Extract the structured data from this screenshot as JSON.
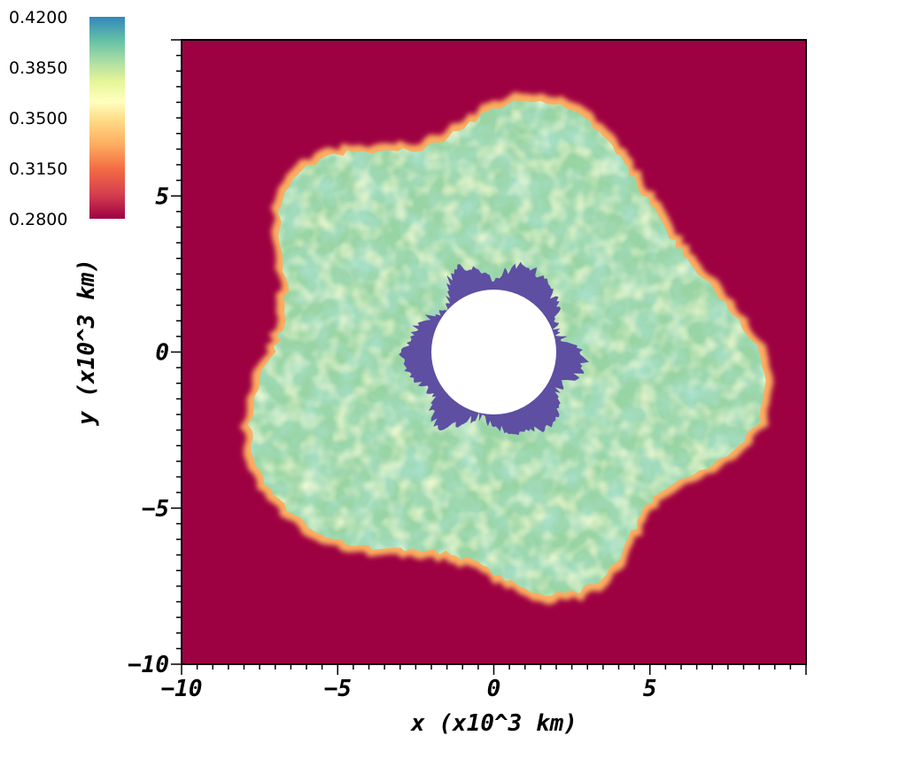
{
  "chart_data": {
    "type": "heatmap",
    "xlabel": "x (x10^3 km)",
    "ylabel": "y (x10^3 km)",
    "xlim": [
      -10,
      10
    ],
    "ylim": [
      -10,
      10
    ],
    "x_ticks": [
      -10,
      -5,
      0,
      5
    ],
    "y_ticks": [
      -10,
      -5,
      0,
      5
    ],
    "x_tick_labels": [
      "−10",
      "−5",
      "0",
      "5"
    ],
    "y_tick_labels": [
      "−10",
      "−5",
      "0",
      "5"
    ],
    "colorbar": {
      "range": [
        0.28,
        0.42
      ],
      "tick_values": [
        0.42,
        0.385,
        0.35,
        0.315,
        0.28
      ],
      "tick_labels": [
        "0.4200",
        "0.3850",
        "0.3500",
        "0.3150",
        "0.2800"
      ],
      "placement": "top-left",
      "colormap": "Spectral"
    },
    "inner_hole_radius": 2.0,
    "core_radius": 2.6,
    "outer_radius_mean": 7.6,
    "background_value": 0.28,
    "core_value": 0.42,
    "ejecta_value": 0.375
  },
  "colors": {
    "background": "#9e0142",
    "core": "#5e4fa2",
    "ejecta": "#99d4a4",
    "ejecta_light": "#e6f598",
    "rim": "#fdae61",
    "hole": "#ffffff"
  }
}
